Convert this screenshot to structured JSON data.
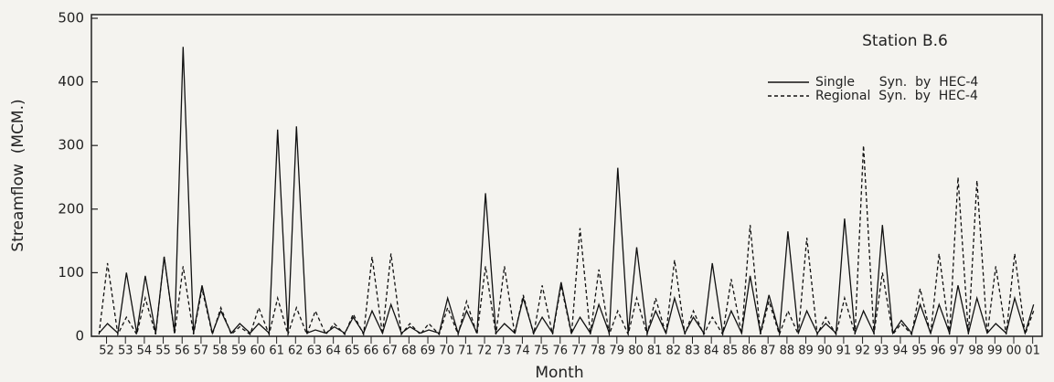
{
  "chart_data": {
    "type": "line",
    "title": "Station B.6",
    "ylabel": "Streamflow  (MCM.)",
    "xlabel": "Month",
    "x": [
      1952.1,
      1952.55,
      1953.1,
      1953.55,
      1954.1,
      1954.55,
      1955.1,
      1955.55,
      1956.1,
      1956.55,
      1957.1,
      1957.55,
      1958.1,
      1958.55,
      1959.1,
      1959.55,
      1960.1,
      1960.55,
      1961.1,
      1961.55,
      1962.1,
      1962.55,
      1963.1,
      1963.55,
      1964.1,
      1964.55,
      1965.1,
      1965.55,
      1966.1,
      1966.55,
      1967.1,
      1967.55,
      1968.1,
      1968.55,
      1969.1,
      1969.55,
      1970.1,
      1970.55,
      1971.1,
      1971.55,
      1972.1,
      1972.55,
      1973.1,
      1973.55,
      1974.1,
      1974.55,
      1975.1,
      1975.55,
      1976.1,
      1976.55,
      1977.1,
      1977.55,
      1978.1,
      1978.55,
      1979.1,
      1979.55,
      1980.1,
      1980.55,
      1981.1,
      1981.55,
      1982.1,
      1982.55,
      1983.1,
      1983.55,
      1984.1,
      1984.55,
      1985.1,
      1985.55,
      1986.1,
      1986.55,
      1987.1,
      1987.55,
      1988.1,
      1988.55,
      1989.1,
      1989.55,
      1990.1,
      1990.55,
      1991.1,
      1991.55,
      1992.1,
      1992.55,
      1993.1,
      1993.55,
      1994.1,
      1994.55,
      1995.1,
      1995.55,
      1996.1,
      1996.55,
      1997.1,
      1997.55,
      1998.1,
      1998.55,
      1999.1,
      1999.55,
      2000.1,
      2000.55,
      2001.1,
      2001.55
    ],
    "series": [
      {
        "name": "Single      Syn.  by  HEC-4",
        "color": "#111111",
        "dash": false,
        "values": [
          5,
          20,
          5,
          100,
          5,
          95,
          5,
          125,
          5,
          455,
          5,
          80,
          5,
          40,
          5,
          20,
          5,
          20,
          5,
          325,
          5,
          330,
          5,
          10,
          5,
          15,
          5,
          30,
          5,
          40,
          5,
          50,
          5,
          15,
          5,
          10,
          5,
          60,
          5,
          40,
          5,
          225,
          5,
          20,
          5,
          60,
          5,
          30,
          5,
          85,
          5,
          30,
          5,
          50,
          5,
          265,
          5,
          140,
          5,
          40,
          5,
          60,
          5,
          30,
          5,
          115,
          5,
          40,
          5,
          95,
          5,
          65,
          5,
          165,
          5,
          40,
          5,
          20,
          5,
          185,
          5,
          40,
          5,
          175,
          5,
          25,
          5,
          50,
          5,
          50,
          5,
          80,
          5,
          60,
          5,
          20,
          5,
          60,
          5,
          50
        ]
      },
      {
        "name": "Regional  Syn.  by  HEC-4",
        "color": "#111111",
        "dash": true,
        "values": [
          3,
          115,
          3,
          30,
          3,
          60,
          3,
          125,
          3,
          110,
          3,
          75,
          3,
          45,
          3,
          15,
          3,
          45,
          3,
          60,
          3,
          45,
          3,
          40,
          3,
          20,
          3,
          35,
          3,
          125,
          3,
          130,
          3,
          20,
          3,
          20,
          3,
          45,
          3,
          55,
          3,
          110,
          3,
          110,
          3,
          65,
          3,
          80,
          3,
          80,
          3,
          170,
          3,
          105,
          3,
          40,
          3,
          60,
          3,
          60,
          3,
          120,
          3,
          40,
          3,
          30,
          3,
          90,
          3,
          175,
          3,
          55,
          3,
          40,
          3,
          155,
          3,
          30,
          3,
          60,
          3,
          300,
          3,
          100,
          3,
          20,
          3,
          75,
          3,
          130,
          3,
          250,
          3,
          245,
          3,
          110,
          3,
          130,
          3,
          40
        ]
      }
    ],
    "xlim": [
      1951.7,
      2002.0
    ],
    "xticks": [
      {
        "value": 1952.5,
        "label": "52"
      },
      {
        "value": 1953.5,
        "label": "53"
      },
      {
        "value": 1954.5,
        "label": "54"
      },
      {
        "value": 1955.5,
        "label": "55"
      },
      {
        "value": 1956.5,
        "label": "56"
      },
      {
        "value": 1957.5,
        "label": "57"
      },
      {
        "value": 1958.5,
        "label": "58"
      },
      {
        "value": 1959.5,
        "label": "59"
      },
      {
        "value": 1960.5,
        "label": "60"
      },
      {
        "value": 1961.5,
        "label": "61"
      },
      {
        "value": 1962.5,
        "label": "62"
      },
      {
        "value": 1963.5,
        "label": "63"
      },
      {
        "value": 1964.5,
        "label": "64"
      },
      {
        "value": 1965.5,
        "label": "65"
      },
      {
        "value": 1966.5,
        "label": "66"
      },
      {
        "value": 1967.5,
        "label": "67"
      },
      {
        "value": 1968.5,
        "label": "68"
      },
      {
        "value": 1969.5,
        "label": "69"
      },
      {
        "value": 1970.5,
        "label": "70"
      },
      {
        "value": 1971.5,
        "label": "71"
      },
      {
        "value": 1972.5,
        "label": "72"
      },
      {
        "value": 1973.5,
        "label": "73"
      },
      {
        "value": 1974.5,
        "label": "74"
      },
      {
        "value": 1975.5,
        "label": "75"
      },
      {
        "value": 1976.5,
        "label": "76"
      },
      {
        "value": 1977.5,
        "label": "77"
      },
      {
        "value": 1978.5,
        "label": "78"
      },
      {
        "value": 1979.5,
        "label": "79"
      },
      {
        "value": 1980.5,
        "label": "80"
      },
      {
        "value": 1981.5,
        "label": "81"
      },
      {
        "value": 1982.5,
        "label": "82"
      },
      {
        "value": 1983.5,
        "label": "83"
      },
      {
        "value": 1984.5,
        "label": "84"
      },
      {
        "value": 1985.5,
        "label": "85"
      },
      {
        "value": 1986.5,
        "label": "86"
      },
      {
        "value": 1987.5,
        "label": "87"
      },
      {
        "value": 1988.5,
        "label": "88"
      },
      {
        "value": 1989.5,
        "label": "89"
      },
      {
        "value": 1990.5,
        "label": "90"
      },
      {
        "value": 1991.5,
        "label": "91"
      },
      {
        "value": 1992.5,
        "label": "92"
      },
      {
        "value": 1993.5,
        "label": "93"
      },
      {
        "value": 1994.5,
        "label": "94"
      },
      {
        "value": 1995.5,
        "label": "95"
      },
      {
        "value": 1996.5,
        "label": "96"
      },
      {
        "value": 1997.5,
        "label": "97"
      },
      {
        "value": 1998.5,
        "label": "98"
      },
      {
        "value": 1999.5,
        "label": "99"
      },
      {
        "value": 2000.5,
        "label": "00"
      },
      {
        "value": 2001.5,
        "label": "01"
      }
    ],
    "ylim": [
      0,
      500
    ],
    "yticks": [
      0,
      100,
      200,
      300,
      400,
      500
    ]
  }
}
